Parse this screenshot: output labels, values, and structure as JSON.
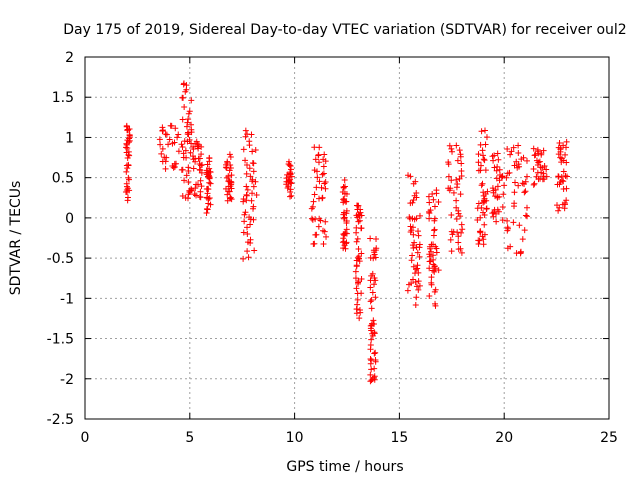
{
  "chart_data": {
    "type": "scatter",
    "title": "Day 175 of 2019, Sidereal Day-to-day VTEC variation (SDTVAR) for receiver oul2",
    "xlabel": "GPS time / hours",
    "ylabel": "SDTVAR / TECUs",
    "xlim": [
      0,
      25
    ],
    "ylim": [
      -2.5,
      2
    ],
    "xticks": [
      "0",
      "5",
      "10",
      "15",
      "20",
      "25"
    ],
    "yticks": [
      "2",
      "1.5",
      "1",
      "0.5",
      "0",
      "-0.5",
      "-1",
      "-1.5",
      "-2",
      "-2.5"
    ],
    "grid": true,
    "marker": "+",
    "color": "#ff0000",
    "clusters": [
      {
        "x": [
          1.95,
          2.15
        ],
        "y": [
          0.2,
          1.2
        ]
      },
      {
        "x": [
          3.5,
          4.5
        ],
        "y": [
          0.6,
          1.15
        ]
      },
      {
        "x": [
          4.6,
          5.1
        ],
        "y": [
          0.2,
          1.75
        ]
      },
      {
        "x": [
          5.1,
          5.6
        ],
        "y": [
          0.25,
          0.95
        ]
      },
      {
        "x": [
          5.8,
          6.0
        ],
        "y": [
          0.05,
          0.8
        ]
      },
      {
        "x": [
          6.7,
          7.0
        ],
        "y": [
          0.2,
          0.8
        ]
      },
      {
        "x": [
          7.5,
          8.2
        ],
        "y": [
          -0.55,
          1.1
        ]
      },
      {
        "x": [
          9.6,
          9.9
        ],
        "y": [
          0.25,
          0.7
        ]
      },
      {
        "x": [
          10.8,
          11.5
        ],
        "y": [
          -0.35,
          0.9
        ]
      },
      {
        "x": [
          12.3,
          12.5
        ],
        "y": [
          -0.4,
          0.5
        ]
      },
      {
        "x": [
          12.9,
          13.2
        ],
        "y": [
          -1.25,
          0.2
        ]
      },
      {
        "x": [
          13.6,
          13.9
        ],
        "y": [
          -2.05,
          -0.25
        ]
      },
      {
        "x": [
          15.4,
          16.0
        ],
        "y": [
          -1.1,
          0.55
        ]
      },
      {
        "x": [
          16.4,
          16.9
        ],
        "y": [
          -1.15,
          0.35
        ]
      },
      {
        "x": [
          17.3,
          18.0
        ],
        "y": [
          -0.45,
          0.95
        ]
      },
      {
        "x": [
          18.7,
          19.2
        ],
        "y": [
          -0.35,
          1.1
        ]
      },
      {
        "x": [
          19.4,
          20.0
        ],
        "y": [
          -0.1,
          0.8
        ]
      },
      {
        "x": [
          20.1,
          21.1
        ],
        "y": [
          -0.45,
          0.95
        ]
      },
      {
        "x": [
          21.4,
          22.1
        ],
        "y": [
          0.4,
          0.95
        ]
      },
      {
        "x": [
          22.5,
          23.0
        ],
        "y": [
          0.05,
          0.95
        ]
      }
    ]
  }
}
